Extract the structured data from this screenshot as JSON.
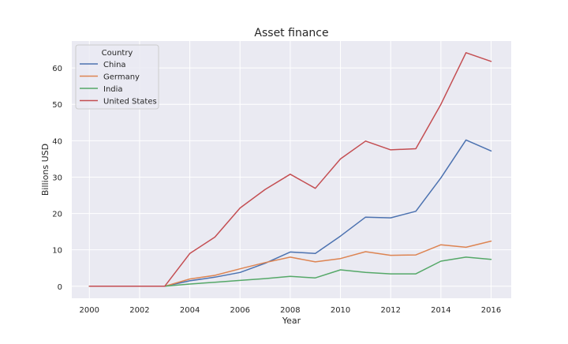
{
  "chart_data": {
    "type": "line",
    "title": "Asset finance",
    "xlabel": "Year",
    "ylabel": "Billions USD",
    "x": [
      2000,
      2001,
      2002,
      2003,
      2004,
      2005,
      2006,
      2007,
      2008,
      2009,
      2010,
      2011,
      2012,
      2013,
      2014,
      2015,
      2016
    ],
    "xlim": [
      1999.3,
      2016.8
    ],
    "ylim": [
      -3.3,
      67.4
    ],
    "x_ticks": [
      2000,
      2002,
      2004,
      2006,
      2008,
      2010,
      2012,
      2014,
      2016
    ],
    "y_ticks": [
      0,
      10,
      20,
      30,
      40,
      50,
      60
    ],
    "grid": true,
    "legend": {
      "title": "Country",
      "placement": "top-left"
    },
    "series": [
      {
        "name": "China",
        "color": "#4c72b0",
        "values": [
          0,
          0,
          0,
          0,
          1.5,
          2.5,
          3.8,
          6.3,
          9.4,
          9.0,
          13.8,
          19.0,
          18.8,
          20.6,
          29.8,
          40.2,
          37.2
        ]
      },
      {
        "name": "Germany",
        "color": "#dd8452",
        "values": [
          0,
          0,
          0,
          0,
          2.0,
          3.0,
          4.8,
          6.5,
          8.0,
          6.7,
          7.6,
          9.5,
          8.5,
          8.6,
          11.4,
          10.7,
          12.4
        ]
      },
      {
        "name": "India",
        "color": "#55a868",
        "values": [
          0,
          0,
          0,
          0,
          0.6,
          1.1,
          1.6,
          2.1,
          2.7,
          2.3,
          4.5,
          3.8,
          3.4,
          3.4,
          6.9,
          8.0,
          7.4
        ]
      },
      {
        "name": "United States",
        "color": "#c44e52",
        "values": [
          0,
          0,
          0,
          0,
          9.0,
          13.5,
          21.5,
          26.6,
          30.8,
          26.9,
          35.0,
          39.9,
          37.5,
          37.8,
          50.0,
          64.2,
          61.8
        ]
      }
    ]
  }
}
